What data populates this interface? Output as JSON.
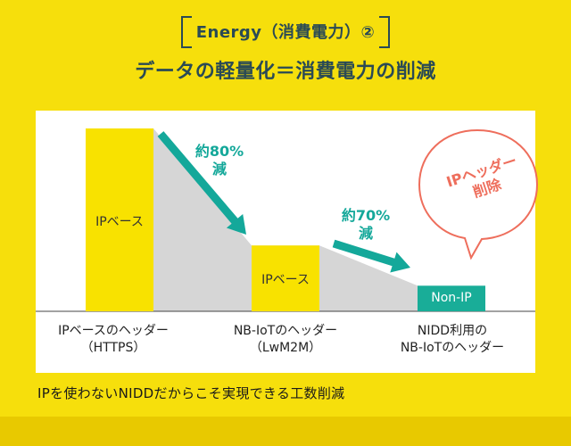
{
  "header": {
    "tag": "Energy（消費電力）②",
    "headline": "データの軽量化＝消費電力の削減"
  },
  "chart_data": {
    "type": "bar",
    "categories": [
      "IPベースのヘッダー（HTTPS）",
      "NB-IoTのヘッダー（LwM2M）",
      "NIDD利用のNB-IoTのヘッダー"
    ],
    "series": [
      {
        "values": [
          100,
          36,
          14
        ]
      }
    ],
    "bar_labels": [
      "IPベース",
      "IPベース",
      "Non-IP"
    ],
    "category_lines": [
      [
        "IPベースのヘッダー",
        "（HTTPS）"
      ],
      [
        "NB-IoTのヘッダー",
        "（LwM2M）"
      ],
      [
        "NIDD利用の",
        "NB-IoTのヘッダー"
      ]
    ],
    "reductions": [
      {
        "line1": "約80%",
        "line2": "減"
      },
      {
        "line1": "約70%",
        "line2": "減"
      }
    ],
    "ylim": [
      0,
      100
    ],
    "grid": false
  },
  "callout": {
    "line1": "IPヘッダー",
    "line2": "削除"
  },
  "footnote": "IPを使わないNIDDだからこそ実現できる工数削減",
  "colors": {
    "background": "#f6df0c",
    "bar_ip": "#f8e200",
    "bar_nonip": "#19ad98",
    "arrow": "#14a89a",
    "shade": "#d6d6d6",
    "callout": "#ee6e5c",
    "heading": "#2a4a55"
  }
}
